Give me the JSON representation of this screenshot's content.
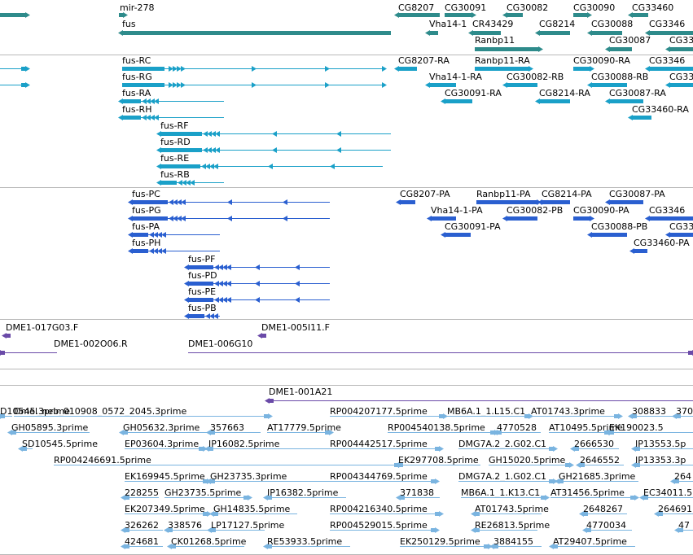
{
  "colors": {
    "genes": "#2e8b8b",
    "transcripts": "#1aa0c8",
    "proteins": "#2a5fd0",
    "clones": "#6a4aa8",
    "ests": "#7ab4e0"
  },
  "tracks": {
    "genes": {
      "features": [
        {
          "label": ""
        },
        {
          "label": "mir-278"
        },
        {
          "label": "fus"
        },
        {
          "label": "CG8207"
        },
        {
          "label": "CG30091"
        },
        {
          "label": "CG30082"
        },
        {
          "label": "CG30090"
        },
        {
          "label": "CG33460"
        },
        {
          "label": "Vha14-1"
        },
        {
          "label": "CR43429"
        },
        {
          "label": "CG8214"
        },
        {
          "label": "CG30088"
        },
        {
          "label": "CG3346"
        },
        {
          "label": "Ranbp11"
        },
        {
          "label": "CG30087"
        },
        {
          "label": "CG33"
        }
      ]
    },
    "transcripts": {
      "features": [
        {
          "label": ""
        },
        {
          "label": ""
        },
        {
          "label": "fus-RC"
        },
        {
          "label": "fus-RG"
        },
        {
          "label": "fus-RA"
        },
        {
          "label": "fus-RH"
        },
        {
          "label": "fus-RF"
        },
        {
          "label": "fus-RD"
        },
        {
          "label": "fus-RE"
        },
        {
          "label": "fus-RB"
        },
        {
          "label": "CG8207-RA"
        },
        {
          "label": "Ranbp11-RA"
        },
        {
          "label": "CG30090-RA"
        },
        {
          "label": "CG3346"
        },
        {
          "label": "Vha14-1-RA"
        },
        {
          "label": "CG30082-RB"
        },
        {
          "label": "CG30088-RB"
        },
        {
          "label": "CG33"
        },
        {
          "label": "CG30091-RA"
        },
        {
          "label": "CG8214-RA"
        },
        {
          "label": "CG30087-RA"
        },
        {
          "label": "CG33460-RA"
        }
      ]
    },
    "proteins": {
      "features": [
        {
          "label": "fus-PC"
        },
        {
          "label": "fus-PG"
        },
        {
          "label": "fus-PA"
        },
        {
          "label": "fus-PH"
        },
        {
          "label": "fus-PF"
        },
        {
          "label": "fus-PD"
        },
        {
          "label": "fus-PE"
        },
        {
          "label": "fus-PB"
        },
        {
          "label": "CG8207-PA"
        },
        {
          "label": "Ranbp11-PA"
        },
        {
          "label": "CG8214-PA"
        },
        {
          "label": "CG30087-PA"
        },
        {
          "label": "Vha14-1-PA"
        },
        {
          "label": "CG30082-PB"
        },
        {
          "label": "CG30090-PA"
        },
        {
          "label": "CG3346"
        },
        {
          "label": "CG30091-PA"
        },
        {
          "label": "CG30088-PB"
        },
        {
          "label": "CG33"
        },
        {
          "label": "CG33460-PA"
        }
      ]
    },
    "clones": {
      "features": [
        {
          "label": "DME1-017G03.F"
        },
        {
          "label": "DME1-005I11.F"
        },
        {
          "label": "DME1-002O06.R"
        },
        {
          "label": "DME1-006G10"
        }
      ]
    },
    "clones2": {
      "features": [
        {
          "label": "DME1-001A21"
        }
      ]
    },
    "ests": {
      "features": [
        {
          "label": "D10545.3prime"
        },
        {
          "label": "Dmel_neb_010908_0572_2045.3prime"
        },
        {
          "label": "RP004207177.5prime"
        },
        {
          "label": "MB6A.1_1.L15.C1"
        },
        {
          "label": "AT01743.3prime"
        },
        {
          "label": "308833"
        },
        {
          "label": "370"
        },
        {
          "label": "GH05895.3prime"
        },
        {
          "label": "GH05632.3prime"
        },
        {
          "label": "357663"
        },
        {
          "label": "AT17779.5prime"
        },
        {
          "label": "RP004540138.5prime"
        },
        {
          "label": "4770528"
        },
        {
          "label": "AT10495.5prime"
        },
        {
          "label": "EK190023.5"
        },
        {
          "label": "SD10545.5prime"
        },
        {
          "label": "EP03604.3prime"
        },
        {
          "label": "IP16082.5prime"
        },
        {
          "label": "RP004442517.5prime"
        },
        {
          "label": "DMG7A.2_2.G02.C1"
        },
        {
          "label": "2666530"
        },
        {
          "label": "IP13553.5p"
        },
        {
          "label": "RP004246691.5prime"
        },
        {
          "label": "EK297708.5prime"
        },
        {
          "label": "GH15020.5prime"
        },
        {
          "label": "2646552"
        },
        {
          "label": "IP13353.3p"
        },
        {
          "label": "EK169945.5prime"
        },
        {
          "label": "GH23735.3prime"
        },
        {
          "label": "RP004344769.5prime"
        },
        {
          "label": "DMG7A.2_1.G02.C1"
        },
        {
          "label": "GH21685.3prime"
        },
        {
          "label": "264"
        },
        {
          "label": "228255"
        },
        {
          "label": "GH23735.5prime"
        },
        {
          "label": "IP16382.5prime"
        },
        {
          "label": "371838"
        },
        {
          "label": "MB6A.1_1.K13.C1"
        },
        {
          "label": "AT31456.5prime"
        },
        {
          "label": "EC34011.5"
        },
        {
          "label": "EK207349.5prime"
        },
        {
          "label": "GH14835.5prime"
        },
        {
          "label": "RP004216340.5prime"
        },
        {
          "label": "AT01743.5prime"
        },
        {
          "label": "2648267"
        },
        {
          "label": "264691"
        },
        {
          "label": "326262"
        },
        {
          "label": "338576"
        },
        {
          "label": "LP17127.5prime"
        },
        {
          "label": "RP004529015.5prime"
        },
        {
          "label": "RE26813.5prime"
        },
        {
          "label": "4770034"
        },
        {
          "label": "47"
        },
        {
          "label": "424681"
        },
        {
          "label": "CK01268.5prime"
        },
        {
          "label": "RE53933.5prime"
        },
        {
          "label": "EK250129.5prime"
        },
        {
          "label": "3884155"
        },
        {
          "label": "AT29407.5prime"
        }
      ]
    }
  }
}
